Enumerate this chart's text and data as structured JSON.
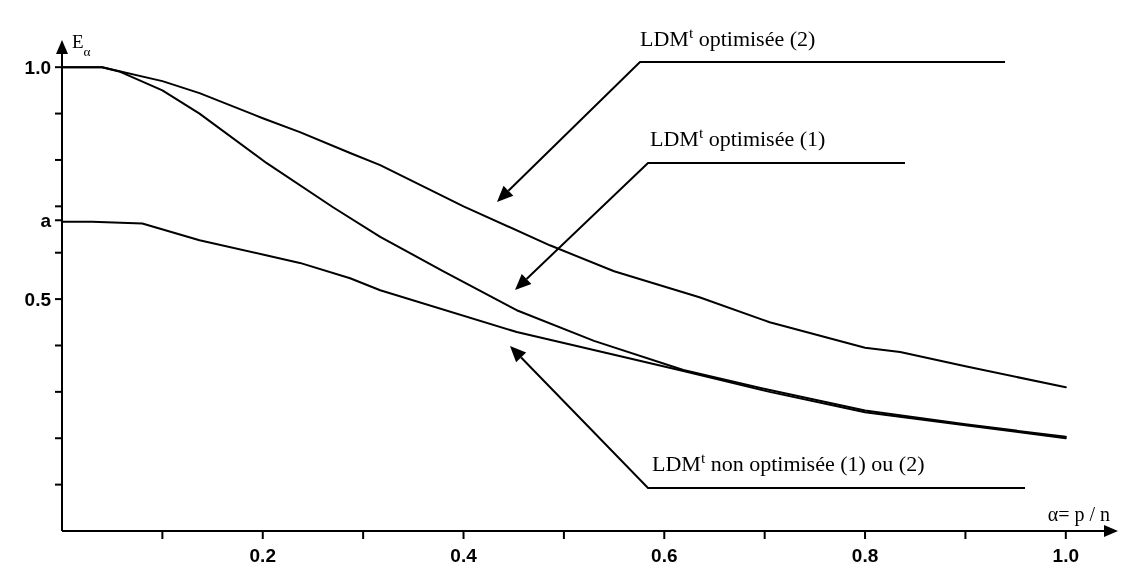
{
  "chart_data": {
    "type": "line",
    "xlabel": "α= p / n",
    "ylabel": "E$_{α}$",
    "xlim": [
      0,
      1.05
    ],
    "ylim": [
      0,
      1.05
    ],
    "xticks": [
      {
        "value": 0.1,
        "label": null
      },
      0.2,
      {
        "value": 0.3,
        "label": null
      },
      0.4,
      {
        "value": 0.5,
        "label": null
      },
      0.6,
      {
        "value": 0.7,
        "label": null
      },
      0.8,
      {
        "value": 0.9,
        "label": null
      },
      {
        "value": 1.0,
        "label": "1.0"
      }
    ],
    "yticks": [
      {
        "value": 0.1,
        "label": null
      },
      {
        "value": 0.2,
        "label": null
      },
      {
        "value": 0.3,
        "label": null
      },
      {
        "value": 0.4,
        "label": null
      },
      0.5,
      {
        "value": 0.6,
        "label": null
      },
      {
        "value": 0.67,
        "label": "a"
      },
      {
        "value": 0.7,
        "label": null
      },
      {
        "value": 0.8,
        "label": null
      },
      {
        "value": 0.9,
        "label": null
      },
      {
        "value": 1.0,
        "label": "1.0"
      }
    ],
    "series": [
      {
        "color": "#000000",
        "x": [
          0,
          0.04,
          0.1,
          0.137,
          0.2,
          0.237,
          0.287,
          0.317,
          0.4,
          0.486,
          0.55,
          0.635,
          0.705,
          0.8,
          0.835,
          0.9,
          1.0
        ],
        "values": [
          1.0,
          1.0,
          0.97,
          0.944,
          0.89,
          0.86,
          0.815,
          0.789,
          0.7,
          0.616,
          0.56,
          0.504,
          0.45,
          0.395,
          0.386,
          0.355,
          0.31
        ]
      },
      {
        "color": "#000000",
        "x": [
          0,
          0.04,
          0.058,
          0.1,
          0.137,
          0.204,
          0.27,
          0.317,
          0.38,
          0.453,
          0.53,
          0.619,
          0.705,
          0.8,
          0.9,
          1.0
        ],
        "values": [
          1.0,
          1.0,
          0.99,
          0.95,
          0.9,
          0.793,
          0.698,
          0.634,
          0.56,
          0.476,
          0.41,
          0.347,
          0.304,
          0.26,
          0.23,
          0.203
        ]
      },
      {
        "color": "#000000",
        "x": [
          0,
          0.03,
          0.08,
          0.137,
          0.237,
          0.287,
          0.317,
          0.453,
          0.55,
          0.619,
          0.705,
          0.8,
          0.9,
          1.0
        ],
        "values": [
          0.667,
          0.667,
          0.663,
          0.627,
          0.578,
          0.545,
          0.519,
          0.429,
          0.38,
          0.345,
          0.3,
          0.256,
          0.228,
          0.2
        ]
      }
    ],
    "annotations": [
      "LDM$^{t}$ optimisée (2)",
      "LDM$^{t}$ optimisée (1)",
      "LDM$^{t}$ non optimisée (1) ou (2)"
    ]
  }
}
